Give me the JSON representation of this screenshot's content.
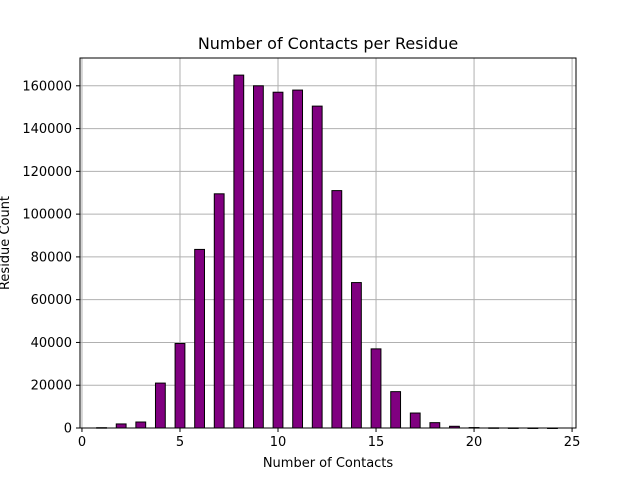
{
  "chart_data": {
    "type": "bar",
    "title": "Number of Contacts per Residue",
    "xlabel": "Number of Contacts",
    "ylabel": "Residue Count",
    "xlim": [
      -0.1,
      25.2
    ],
    "ylim": [
      0,
      173000
    ],
    "grid": true,
    "bar_color": "#800080",
    "edge_color": "#000000",
    "x_ticks": [
      0,
      5,
      10,
      15,
      20,
      25
    ],
    "y_ticks": [
      0,
      20000,
      40000,
      60000,
      80000,
      100000,
      120000,
      140000,
      160000
    ],
    "x": [
      1,
      2,
      3,
      4,
      5,
      6,
      7,
      8,
      9,
      10,
      11,
      12,
      13,
      14,
      15,
      16,
      17,
      18,
      19,
      20,
      21,
      22,
      23,
      24
    ],
    "values": [
      150,
      1900,
      2800,
      21000,
      39500,
      83500,
      109500,
      165000,
      160000,
      157000,
      158000,
      150500,
      111000,
      68000,
      37000,
      17000,
      7000,
      2500,
      800,
      200,
      80,
      40,
      20,
      10
    ]
  }
}
